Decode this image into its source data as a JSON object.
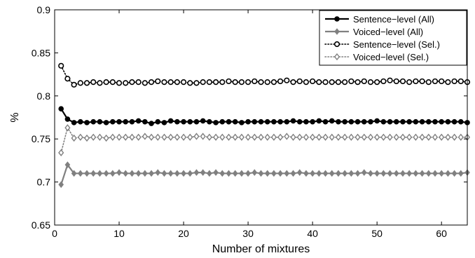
{
  "chart_data": {
    "type": "line",
    "xlabel": "Number of mixtures",
    "ylabel": "%",
    "xlim": [
      0,
      64
    ],
    "ylim": [
      0.65,
      0.9
    ],
    "xticks": [
      0,
      10,
      20,
      30,
      40,
      50,
      60
    ],
    "yticks": [
      0.65,
      0.7,
      0.75,
      0.8,
      0.85,
      0.9
    ],
    "ytick_labels": [
      "0.65",
      "0.7",
      "0.75",
      "0.8",
      "0.85",
      "0.9"
    ],
    "grid": false,
    "legend_position": "top-right",
    "x": [
      1,
      2,
      3,
      4,
      5,
      6,
      7,
      8,
      9,
      10,
      11,
      12,
      13,
      14,
      15,
      16,
      17,
      18,
      19,
      20,
      21,
      22,
      23,
      24,
      25,
      26,
      27,
      28,
      29,
      30,
      31,
      32,
      33,
      34,
      35,
      36,
      37,
      38,
      39,
      40,
      41,
      42,
      43,
      44,
      45,
      46,
      47,
      48,
      49,
      50,
      51,
      52,
      53,
      54,
      55,
      56,
      57,
      58,
      59,
      60,
      61,
      62,
      63,
      64
    ],
    "series": [
      {
        "name": "Sentence−level (All)",
        "color": "#000000",
        "line_style": "solid",
        "marker": "filled-circle",
        "values": [
          0.785,
          0.773,
          0.769,
          0.77,
          0.769,
          0.77,
          0.77,
          0.769,
          0.77,
          0.77,
          0.77,
          0.77,
          0.771,
          0.77,
          0.768,
          0.77,
          0.769,
          0.771,
          0.77,
          0.77,
          0.77,
          0.77,
          0.771,
          0.77,
          0.769,
          0.77,
          0.77,
          0.77,
          0.769,
          0.77,
          0.77,
          0.77,
          0.77,
          0.77,
          0.77,
          0.77,
          0.771,
          0.77,
          0.77,
          0.77,
          0.771,
          0.77,
          0.771,
          0.77,
          0.77,
          0.77,
          0.77,
          0.77,
          0.77,
          0.771,
          0.77,
          0.77,
          0.77,
          0.77,
          0.77,
          0.77,
          0.77,
          0.77,
          0.77,
          0.77,
          0.77,
          0.77,
          0.77,
          0.769
        ]
      },
      {
        "name": "Voiced−level (All)",
        "color": "#808080",
        "line_style": "solid",
        "marker": "filled-diamond",
        "values": [
          0.697,
          0.72,
          0.71,
          0.71,
          0.71,
          0.71,
          0.71,
          0.71,
          0.71,
          0.711,
          0.71,
          0.71,
          0.71,
          0.71,
          0.71,
          0.711,
          0.71,
          0.71,
          0.71,
          0.71,
          0.71,
          0.711,
          0.711,
          0.71,
          0.711,
          0.71,
          0.71,
          0.71,
          0.71,
          0.71,
          0.711,
          0.71,
          0.71,
          0.71,
          0.71,
          0.71,
          0.71,
          0.711,
          0.71,
          0.71,
          0.71,
          0.71,
          0.71,
          0.71,
          0.71,
          0.71,
          0.71,
          0.711,
          0.71,
          0.71,
          0.71,
          0.71,
          0.71,
          0.71,
          0.71,
          0.71,
          0.71,
          0.71,
          0.71,
          0.71,
          0.71,
          0.71,
          0.71,
          0.711
        ]
      },
      {
        "name": "Sentence−level (Sel.)",
        "color": "#000000",
        "line_style": "dotted",
        "marker": "open-circle",
        "values": [
          0.835,
          0.82,
          0.813,
          0.815,
          0.815,
          0.816,
          0.815,
          0.816,
          0.816,
          0.815,
          0.815,
          0.816,
          0.816,
          0.815,
          0.816,
          0.817,
          0.816,
          0.816,
          0.816,
          0.816,
          0.815,
          0.815,
          0.816,
          0.816,
          0.816,
          0.816,
          0.817,
          0.816,
          0.816,
          0.816,
          0.817,
          0.816,
          0.816,
          0.816,
          0.817,
          0.818,
          0.816,
          0.817,
          0.816,
          0.817,
          0.816,
          0.816,
          0.816,
          0.816,
          0.816,
          0.817,
          0.816,
          0.817,
          0.816,
          0.816,
          0.817,
          0.818,
          0.817,
          0.817,
          0.816,
          0.817,
          0.817,
          0.816,
          0.817,
          0.817,
          0.816,
          0.817,
          0.817,
          0.816
        ]
      },
      {
        "name": "Voiced−level (Sel.)",
        "color": "#808080",
        "line_style": "dotted",
        "marker": "open-diamond",
        "values": [
          0.734,
          0.763,
          0.751,
          0.752,
          0.751,
          0.752,
          0.752,
          0.751,
          0.752,
          0.752,
          0.752,
          0.752,
          0.752,
          0.753,
          0.752,
          0.752,
          0.752,
          0.752,
          0.752,
          0.752,
          0.752,
          0.753,
          0.753,
          0.752,
          0.752,
          0.752,
          0.752,
          0.752,
          0.752,
          0.752,
          0.752,
          0.752,
          0.752,
          0.752,
          0.752,
          0.753,
          0.752,
          0.752,
          0.752,
          0.752,
          0.752,
          0.752,
          0.752,
          0.752,
          0.752,
          0.752,
          0.752,
          0.752,
          0.752,
          0.752,
          0.752,
          0.752,
          0.752,
          0.752,
          0.752,
          0.752,
          0.752,
          0.752,
          0.752,
          0.752,
          0.752,
          0.752,
          0.752,
          0.752
        ]
      }
    ]
  }
}
